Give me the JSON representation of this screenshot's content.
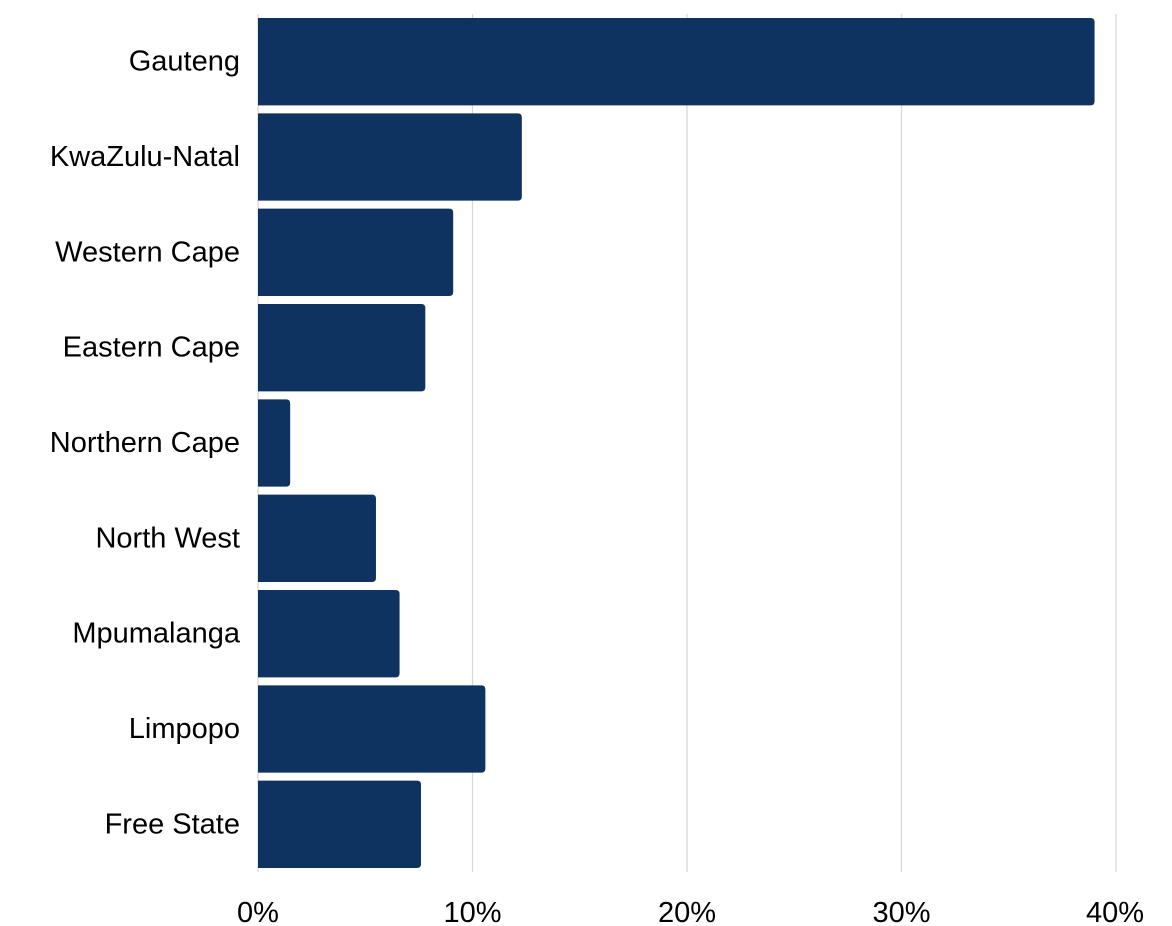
{
  "chart_data": {
    "type": "bar",
    "orientation": "horizontal",
    "categories": [
      "Gauteng",
      "KwaZulu-Natal",
      "Western Cape",
      "Eastern Cape",
      "Northern Cape",
      "North West",
      "Mpumalanga",
      "Limpopo",
      "Free State"
    ],
    "values": [
      39.0,
      12.3,
      9.1,
      7.8,
      1.5,
      5.5,
      6.6,
      10.6,
      7.6
    ],
    "unit": "%",
    "xlim": [
      0,
      40
    ],
    "xticks": [
      0,
      10,
      20,
      30,
      40
    ],
    "xtick_labels": [
      "0%",
      "10%",
      "20%",
      "30%",
      "40%"
    ],
    "title": "",
    "xlabel": "",
    "ylabel": "",
    "grid": "vertical",
    "legend": "none",
    "bar_color": "#0f3360"
  }
}
